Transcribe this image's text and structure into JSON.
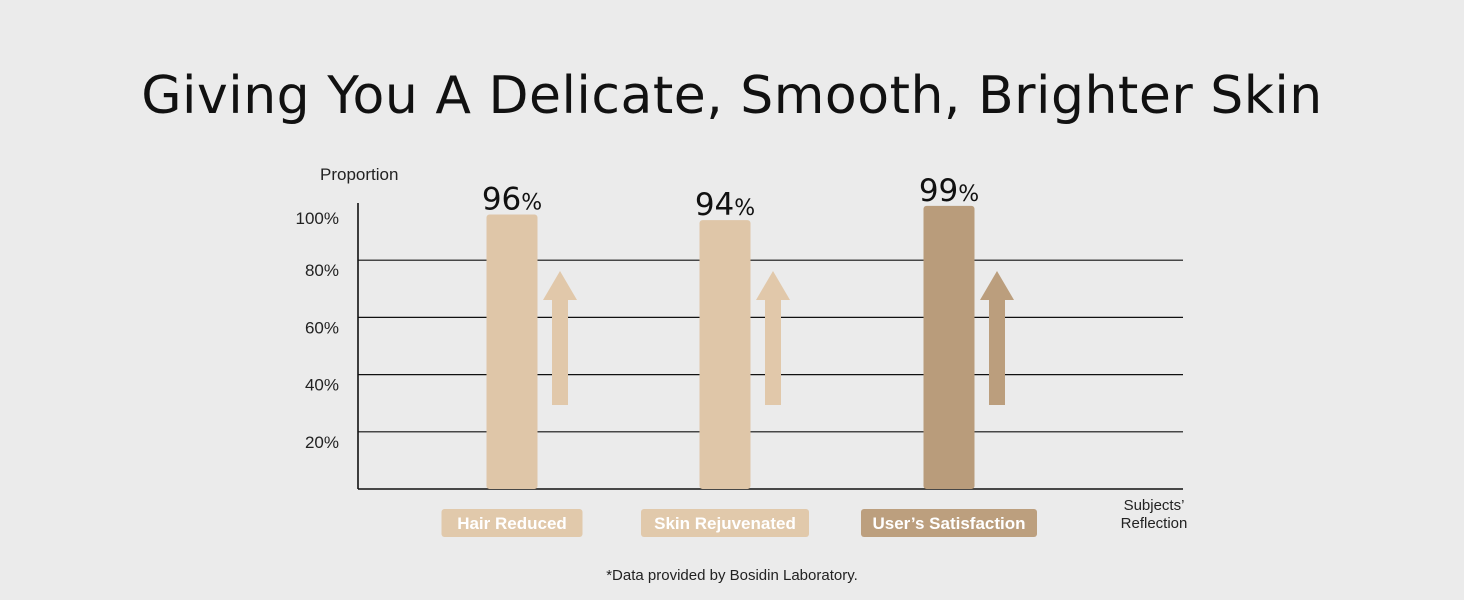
{
  "chart_data": {
    "type": "bar",
    "title": "Giving You A Delicate, Smooth, Brighter Skin",
    "ylabel": "Proportion",
    "xlabel": [
      "Subjects’",
      "Reflection"
    ],
    "ylim": [
      0,
      100
    ],
    "yticks": [
      20,
      40,
      60,
      80,
      100
    ],
    "ytick_labels": [
      "20%",
      "40%",
      "60%",
      "80%",
      "100%"
    ],
    "grid": true,
    "categories": [
      "Hair Reduced",
      "Skin Rejuvenated",
      "User’s Satisfaction"
    ],
    "values": [
      96,
      94,
      99
    ],
    "value_unit": "%",
    "bar_colors": [
      "#dfc6a8",
      "#dfc6a8",
      "#b99c7b"
    ],
    "label_bg_colors": [
      "#e1c9ab",
      "#e1c9ab",
      "#bc9f7e"
    ],
    "arrow_colors": [
      "#e1c8aa",
      "#e1c8aa",
      "#bb9e7d"
    ]
  },
  "footnote": "*Data provided by Bosidin Laboratory."
}
